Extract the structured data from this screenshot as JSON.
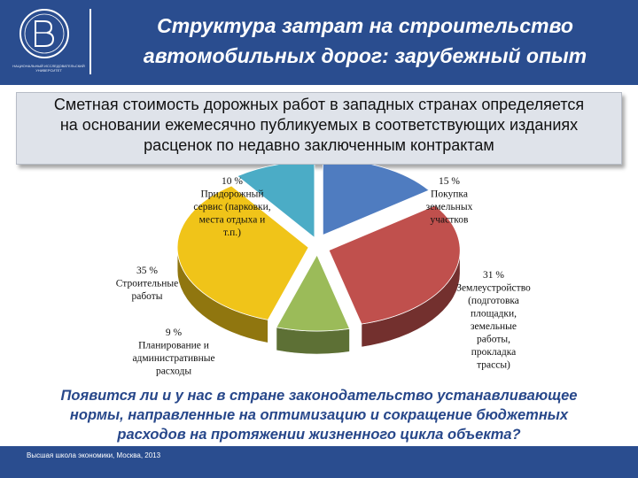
{
  "header": {
    "logo_caption": "Национальный исследовательский университет",
    "title_line1": "Структура затрат на строительство",
    "title_line2": "автомобильных дорог: зарубежный опыт"
  },
  "callout": {
    "line1": "Сметная стоимость дорожных работ в западных странах определяется",
    "line2": "на основании ежемесячно публикуемых в соответствующих изданиях",
    "line3": "расценок по недавно заключенным контрактам"
  },
  "question": {
    "line1": "Появится ли и у нас в стране законодательство устанавливающее",
    "line2": "нормы, направленные на оптимизацию и сокращение бюджетных",
    "line3": "расходов на протяжении жизненного цикла объекта?"
  },
  "footer": {
    "text": "Высшая школа экономики, Москва, 2013"
  },
  "colors": {
    "brand_blue": "#2a4d8f",
    "question_text": "#27478a"
  },
  "chart_data": {
    "type": "pie",
    "three_d": true,
    "exploded": true,
    "slices": [
      {
        "percent_label": "15 %",
        "value": 15,
        "name_lines": [
          "Покупка",
          "земельных",
          "участков"
        ],
        "color": "#4f7cc0"
      },
      {
        "percent_label": "31 %",
        "value": 31,
        "name_lines": [
          "Землеустройство",
          "(подготовка",
          "площадки,",
          "земельные",
          "работы,",
          "прокладка",
          "трассы)"
        ],
        "color": "#c0504d"
      },
      {
        "percent_label": "9 %",
        "value": 9,
        "name_lines": [
          "Планирование и",
          "административные",
          "расходы"
        ],
        "color": "#9bbb59"
      },
      {
        "percent_label": "35 %",
        "value": 35,
        "name_lines": [
          "Строительные",
          "работы"
        ],
        "color": "#f0c419"
      },
      {
        "percent_label": "10 %",
        "value": 10,
        "name_lines": [
          "Придорожный",
          "сервис (парковки,",
          "места отдыха и",
          "т.п.)"
        ],
        "color": "#4bacc6"
      }
    ]
  }
}
